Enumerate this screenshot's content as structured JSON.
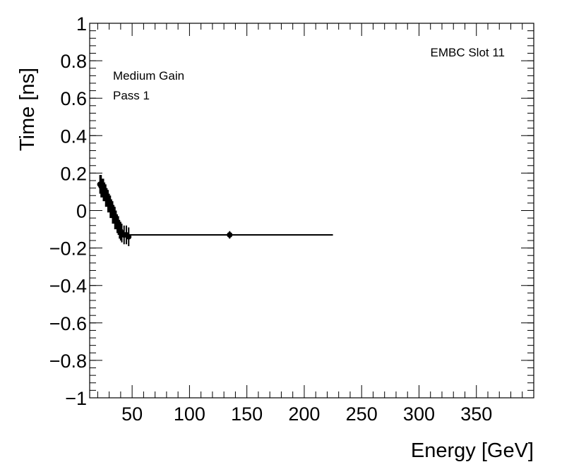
{
  "chart_data": {
    "type": "scatter",
    "xlabel": "Energy [GeV]",
    "ylabel": "Time [ns]",
    "xlim": [
      13,
      400
    ],
    "ylim": [
      -1,
      1
    ],
    "x_ticks": [
      50,
      100,
      150,
      200,
      250,
      300,
      350
    ],
    "y_ticks": [
      -1,
      -0.8,
      -0.6,
      -0.4,
      -0.2,
      0,
      0.2,
      0.4,
      0.6,
      0.8,
      1
    ],
    "x_tick_labels": [
      "50",
      "100",
      "150",
      "200",
      "250",
      "300",
      "350"
    ],
    "y_tick_labels": [
      "−1",
      "−0.8",
      "−0.6",
      "−0.4",
      "−0.2",
      "0",
      "0.2",
      "0.4",
      "0.6",
      "0.8",
      "1"
    ],
    "grid": false,
    "annotations": {
      "slot": "EMBC Slot 11",
      "gain": "Medium Gain",
      "pass": "Pass 1"
    },
    "points": [
      {
        "x": 22.0,
        "y": 0.14,
        "yerr": 0.05
      },
      {
        "x": 23.0,
        "y": 0.13,
        "yerr": 0.06
      },
      {
        "x": 24.0,
        "y": 0.12,
        "yerr": 0.05
      },
      {
        "x": 25.0,
        "y": 0.11,
        "yerr": 0.06
      },
      {
        "x": 26.0,
        "y": 0.1,
        "yerr": 0.05
      },
      {
        "x": 27.0,
        "y": 0.08,
        "yerr": 0.06
      },
      {
        "x": 28.0,
        "y": 0.07,
        "yerr": 0.05
      },
      {
        "x": 29.0,
        "y": 0.05,
        "yerr": 0.06
      },
      {
        "x": 30.0,
        "y": 0.04,
        "yerr": 0.05
      },
      {
        "x": 31.0,
        "y": 0.02,
        "yerr": 0.06
      },
      {
        "x": 32.0,
        "y": 0.01,
        "yerr": 0.05
      },
      {
        "x": 33.0,
        "y": -0.01,
        "yerr": 0.06
      },
      {
        "x": 34.0,
        "y": -0.02,
        "yerr": 0.05
      },
      {
        "x": 35.0,
        "y": -0.04,
        "yerr": 0.06
      },
      {
        "x": 36.0,
        "y": -0.05,
        "yerr": 0.05
      },
      {
        "x": 37.0,
        "y": -0.07,
        "yerr": 0.05
      },
      {
        "x": 38.0,
        "y": -0.08,
        "yerr": 0.05
      },
      {
        "x": 39.0,
        "y": -0.1,
        "yerr": 0.05
      },
      {
        "x": 40.0,
        "y": -0.11,
        "yerr": 0.05
      },
      {
        "x": 41.0,
        "y": -0.12,
        "yerr": 0.05
      },
      {
        "x": 43.0,
        "y": -0.13,
        "yerr": 0.05
      },
      {
        "x": 45.0,
        "y": -0.13,
        "yerr": 0.05
      },
      {
        "x": 47.0,
        "y": -0.14,
        "yerr": 0.05
      },
      {
        "x": 135.0,
        "y": -0.13,
        "yerr": 0.02,
        "xerr": 90
      }
    ]
  }
}
